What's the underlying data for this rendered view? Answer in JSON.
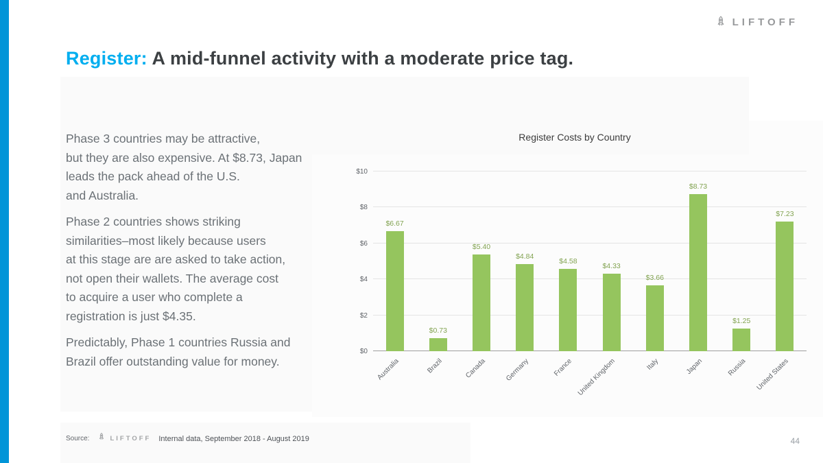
{
  "colors": {
    "accent_bar": "#0095d8",
    "title_accent": "#00aeef",
    "title_text": "#3c4043",
    "body_text": "#6b7176",
    "bar_green": "#95c55e",
    "value_label": "#82a351",
    "muted": "#97999b"
  },
  "logo": {
    "text": "LIFTOFF"
  },
  "title": {
    "highlight": "Register:",
    "rest": " A mid-funnel activity with a moderate price tag."
  },
  "body": {
    "paragraphs": [
      "Phase 3 countries may be attractive,\nbut they are also expensive. At $8.73, Japan\nleads the pack ahead of the U.S.\nand Australia.",
      "Phase 2 countries shows striking\nsimilarities–most likely because users\nat this stage are are asked to take action,\nnot open their wallets. The average cost\nto acquire a user who complete a\nregistration is just $4.35.",
      "Predictably, Phase 1 countries Russia and\nBrazil offer outstanding value for money."
    ]
  },
  "chart_data": {
    "type": "bar",
    "title": "Register Costs by Country",
    "categories": [
      "Australia",
      "Brazil",
      "Canada",
      "Germany",
      "France",
      "United Kingdom",
      "Italy",
      "Japan",
      "Russia",
      "United States"
    ],
    "values": [
      6.67,
      0.73,
      5.4,
      4.84,
      4.58,
      4.33,
      3.66,
      8.73,
      1.25,
      7.23
    ],
    "labels": [
      "$6.67",
      "$0.73",
      "$5.40",
      "$4.84",
      "$4.58",
      "$4.33",
      "$3.66",
      "$8.73",
      "$1.25",
      "$7.23"
    ],
    "xlabel": "",
    "ylabel": "",
    "ylim": [
      0,
      10
    ],
    "yticks": [
      "$0",
      "$2",
      "$4",
      "$6",
      "$8",
      "$10"
    ],
    "grid": true,
    "legend": false
  },
  "footer": {
    "source_label": "Source:",
    "logo_text": "LIFTOFF",
    "attribution": "Internal data, September 2018 - August 2019",
    "page_number": "44"
  }
}
